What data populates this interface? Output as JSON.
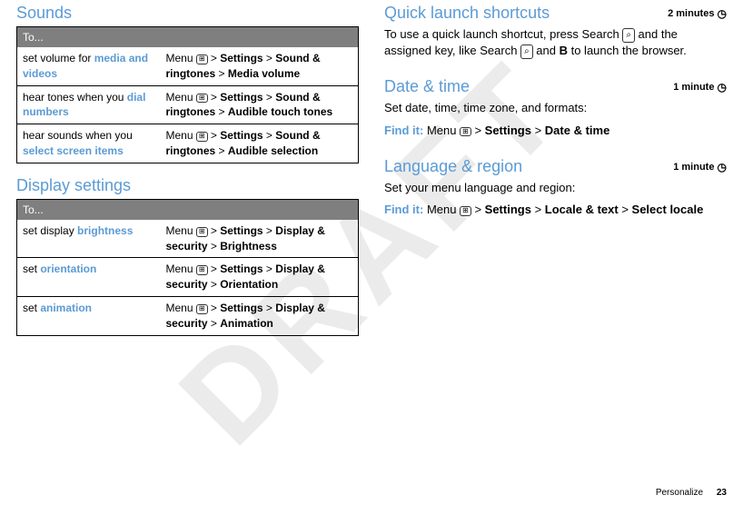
{
  "watermark": "DRAFT",
  "left": {
    "sounds": {
      "title": "Sounds",
      "header": "To...",
      "rows": [
        {
          "leftPre": "set volume for ",
          "leftHl": "media and videos",
          "nav": [
            "Settings",
            "Sound & ringtones",
            "Media volume"
          ]
        },
        {
          "leftPre": "hear tones when you ",
          "leftHl": "dial numbers",
          "nav": [
            "Settings",
            "Sound & ringtones",
            "Audible touch tones"
          ]
        },
        {
          "leftPre": "hear sounds when you ",
          "leftHl": "select screen items",
          "nav": [
            "Settings",
            "Sound & ringtones",
            "Audible selection"
          ]
        }
      ]
    },
    "display": {
      "title": "Display settings",
      "header": "To...",
      "rows": [
        {
          "leftPre": "set display ",
          "leftHl": "brightness",
          "nav": [
            "Settings",
            "Display & security",
            "Brightness"
          ]
        },
        {
          "leftPre": "set ",
          "leftHl": "orientation",
          "nav": [
            "Settings",
            "Display & security",
            "Orientation"
          ]
        },
        {
          "leftPre": "set ",
          "leftHl": "animation",
          "nav": [
            "Settings",
            "Display & security",
            "Animation"
          ]
        }
      ]
    }
  },
  "right": {
    "quick": {
      "title": "Quick launch shortcuts",
      "time": "2 minutes",
      "p1a": "To use a quick launch shortcut, press Search ",
      "p1b": " and the assigned key, like Search ",
      "p1c": " and ",
      "p1d": "B",
      "p1e": " to launch the browser."
    },
    "date": {
      "title": "Date & time",
      "time": "1 minute",
      "p": "Set date, time, time zone, and formats:",
      "findLabel": "Find it:",
      "menuLabel": "Menu",
      "nav": [
        "Settings",
        "Date & time"
      ]
    },
    "lang": {
      "title": "Language & region",
      "time": "1 minute",
      "p": "Set your menu language and region:",
      "findLabel": "Find it:",
      "menuLabel": "Menu",
      "nav": [
        "Settings",
        "Locale & text",
        "Select locale"
      ]
    }
  },
  "footer": {
    "section": "Personalize",
    "page": "23"
  },
  "labels": {
    "menu": "Menu"
  }
}
